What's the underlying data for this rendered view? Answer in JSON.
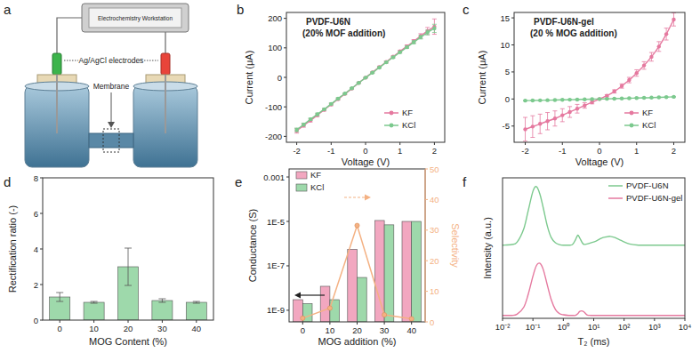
{
  "chart_data": [
    {
      "type": "diagram",
      "panel": "a",
      "labels": {
        "instrument": "Electrochemistry Workstation",
        "electrodes": "Ag/AgCl electrodes",
        "membrane": "Membrane"
      }
    },
    {
      "type": "line",
      "panel": "b",
      "title": "PVDF-U6N",
      "subtitle": "(20% MOF addition)",
      "x_label": "Voltage (V)",
      "y_label": "Current (μA)",
      "x": [
        -2,
        -1.8,
        -1.6,
        -1.4,
        -1.2,
        -1,
        -0.8,
        -0.6,
        -0.4,
        -0.2,
        0,
        0.2,
        0.4,
        0.6,
        0.8,
        1,
        1.2,
        1.4,
        1.6,
        1.8,
        2
      ],
      "xlim": [
        -2.3,
        2.3
      ],
      "xticks": [
        -2,
        -1,
        0,
        1,
        2
      ],
      "ylim": [
        -220,
        220
      ],
      "yticks": [
        -200,
        -100,
        0,
        100,
        200
      ],
      "grid": false,
      "legend": "lower right",
      "series": [
        {
          "name": "KF",
          "color": "#e5799f",
          "marker": "circle",
          "line_style": "solid",
          "values": [
            -181,
            -163,
            -146,
            -128,
            -110,
            -92,
            -74,
            -56,
            -38,
            -19,
            -1,
            17,
            35,
            52,
            70,
            88,
            105,
            122,
            140,
            157,
            172
          ],
          "errors": [
            8,
            6,
            5,
            5,
            4,
            4,
            3,
            3,
            3,
            2,
            2,
            2,
            3,
            3,
            3,
            4,
            5,
            6,
            8,
            12,
            26
          ]
        },
        {
          "name": "KCl",
          "color": "#7cc98e",
          "marker": "circle",
          "line_style": "solid",
          "values": [
            -178,
            -160,
            -142,
            -125,
            -108,
            -90,
            -72,
            -55,
            -37,
            -19,
            -1,
            16,
            33,
            51,
            68,
            85,
            102,
            119,
            136,
            152,
            166
          ],
          "errors": [
            6,
            5,
            4,
            4,
            3,
            3,
            3,
            2,
            2,
            2,
            1,
            2,
            2,
            3,
            3,
            3,
            4,
            5,
            6,
            8,
            14
          ]
        }
      ]
    },
    {
      "type": "line",
      "panel": "c",
      "title": "PVDF-U6N-gel",
      "subtitle": "(20 % MOG addition)",
      "x_label": "Voltage (V)",
      "y_label": "Current (μA)",
      "x": [
        -2,
        -1.8,
        -1.6,
        -1.4,
        -1.2,
        -1,
        -0.8,
        -0.6,
        -0.4,
        -0.2,
        0,
        0.2,
        0.4,
        0.6,
        0.8,
        1,
        1.2,
        1.4,
        1.6,
        1.8,
        2
      ],
      "xlim": [
        -2.3,
        2.3
      ],
      "xticks": [
        -2,
        -1,
        0,
        1,
        2
      ],
      "ylim": [
        -8,
        16
      ],
      "yticks": [
        -5,
        0,
        5,
        10,
        15
      ],
      "grid": false,
      "legend": "lower right",
      "series": [
        {
          "name": "KF",
          "color": "#e5799f",
          "marker": "circle",
          "line_style": "solid",
          "values": [
            -5.6,
            -5.1,
            -4.6,
            -4.1,
            -3.6,
            -3.0,
            -2.4,
            -1.8,
            -1.2,
            -0.6,
            0,
            0.6,
            1.4,
            2.4,
            3.5,
            4.8,
            6.2,
            7.8,
            9.7,
            12.0,
            14.7
          ],
          "errors": [
            2.2,
            2.0,
            1.8,
            1.6,
            1.4,
            1.2,
            1.0,
            0.8,
            0.5,
            0.3,
            0.1,
            0.2,
            0.3,
            0.4,
            0.5,
            0.6,
            0.7,
            0.8,
            0.9,
            1.1,
            1.2
          ]
        },
        {
          "name": "KCl",
          "color": "#7cc98e",
          "marker": "circle",
          "line_style": "solid",
          "values": [
            -0.3,
            -0.28,
            -0.25,
            -0.22,
            -0.19,
            -0.16,
            -0.13,
            -0.1,
            -0.06,
            -0.03,
            0,
            0.03,
            0.06,
            0.1,
            0.13,
            0.17,
            0.21,
            0.25,
            0.3,
            0.35,
            0.4
          ],
          "errors": [
            0.05,
            0.05,
            0.05,
            0.05,
            0.05,
            0.05,
            0.05,
            0.05,
            0.05,
            0.05,
            0.05,
            0.05,
            0.05,
            0.05,
            0.05,
            0.05,
            0.05,
            0.05,
            0.05,
            0.05,
            0.05
          ]
        }
      ]
    },
    {
      "type": "bar",
      "panel": "d",
      "x_label": "MOG Content (%)",
      "y_label": "Rectification ratio (-)",
      "categories": [
        "0",
        "10",
        "20",
        "30",
        "40"
      ],
      "values": [
        1.3,
        1.0,
        3.0,
        1.1,
        1.0
      ],
      "errors": [
        0.25,
        0.05,
        1.05,
        0.1,
        0.05
      ],
      "color": "#9ed9ab",
      "ylim": [
        0,
        8
      ],
      "yticks": [
        0,
        2,
        4,
        6,
        8
      ],
      "grid": false
    },
    {
      "type": "bar",
      "panel": "e",
      "x_label": "MOG addition (%)",
      "y_label": "Conductance (S)",
      "y2_label": "Selectivity",
      "categories": [
        "0",
        "10",
        "20",
        "30",
        "40"
      ],
      "log": "y",
      "ylim": [
        3e-10,
        0.0023
      ],
      "yticks": [
        {
          "value": 1e-09,
          "label": "1E-9"
        },
        {
          "value": 1e-07,
          "label": "1E-7"
        },
        {
          "value": 1e-05,
          "label": "1E-5"
        },
        0.001
      ],
      "y2lim": [
        0,
        50
      ],
      "y2ticks": [
        0,
        10,
        20,
        30,
        40,
        50
      ],
      "grid": false,
      "legend": "upper left",
      "series": [
        {
          "name": "KF",
          "color": "#f2a7c0",
          "type": "bar",
          "values": [
            3e-09,
            1.2e-08,
            5.5e-07,
            1.1e-05,
            1e-05
          ]
        },
        {
          "name": "KCl",
          "color": "#9ed9ab",
          "type": "bar",
          "values": [
            2e-09,
            3e-09,
            3e-08,
            7e-06,
            1e-05
          ]
        },
        {
          "type": "line",
          "axis": "y2",
          "color": "#f4b183",
          "marker": "circle",
          "line_style": "solid",
          "values": [
            1.2,
            4.5,
            31.5,
            2.3,
            1.0
          ]
        }
      ]
    },
    {
      "type": "line",
      "panel": "f",
      "x_label": "T₂ (ms)",
      "y_label": "Intensity (a.u.)",
      "log": "x",
      "tick_labels": "x",
      "x": [
        0.01,
        0.02,
        0.03,
        0.05,
        0.07,
        0.1,
        0.13,
        0.17,
        0.22,
        0.3,
        0.4,
        0.55,
        0.75,
        1,
        1.5,
        2,
        2.5,
        3,
        3.5,
        4.5,
        6,
        8,
        12,
        18,
        25,
        35,
        50,
        80,
        150,
        300,
        1000,
        10000
      ],
      "xlim": [
        0.01,
        10000
      ],
      "xticks": [
        {
          "value": 0.01,
          "label": "10⁻²"
        },
        {
          "value": 0.1,
          "label": "10⁻¹"
        },
        {
          "value": 1,
          "label": "10⁰"
        },
        {
          "value": 10,
          "label": "10¹"
        },
        {
          "value": 100,
          "label": "10²"
        },
        {
          "value": 1000,
          "label": "10³"
        },
        {
          "value": 10000,
          "label": "10⁴"
        }
      ],
      "ylim": [
        0,
        2.4
      ],
      "grid": false,
      "legend": "upper right",
      "series": [
        {
          "name": "PVDF-U6N",
          "color": "#7cc98e",
          "marker": "none",
          "line_style": "solid",
          "values": [
            1.25,
            1.26,
            1.3,
            1.53,
            1.84,
            2.17,
            2.25,
            2.12,
            1.88,
            1.57,
            1.38,
            1.29,
            1.26,
            1.25,
            1.25,
            1.26,
            1.34,
            1.42,
            1.37,
            1.27,
            1.27,
            1.29,
            1.32,
            1.37,
            1.39,
            1.4,
            1.38,
            1.33,
            1.27,
            1.25,
            1.25,
            1.25
          ]
        },
        {
          "name": "PVDF-U6N-gel",
          "color": "#e5799f",
          "marker": "none",
          "line_style": "solid",
          "values": [
            0.05,
            0.05,
            0.07,
            0.19,
            0.41,
            0.72,
            0.9,
            0.94,
            0.83,
            0.56,
            0.32,
            0.15,
            0.08,
            0.06,
            0.05,
            0.05,
            0.05,
            0.08,
            0.12,
            0.12,
            0.06,
            0.05,
            0.05,
            0.05,
            0.05,
            0.05,
            0.05,
            0.05,
            0.05,
            0.05,
            0.05,
            0.05
          ]
        }
      ]
    }
  ]
}
